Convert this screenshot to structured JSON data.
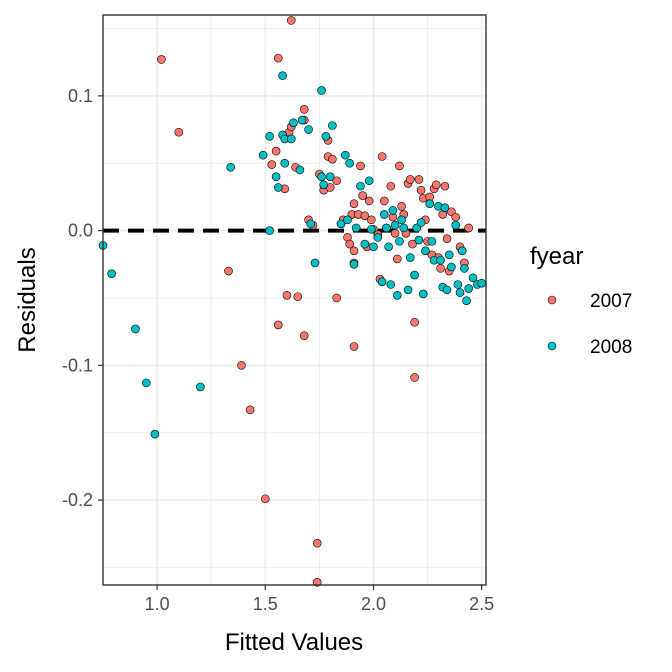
{
  "chart_data": {
    "type": "scatter",
    "xlabel": "Fitted Values",
    "ylabel": "Residuals",
    "xlim": [
      0.75,
      2.52
    ],
    "ylim": [
      -0.263,
      0.16
    ],
    "xticks": [
      1.0,
      1.5,
      2.0,
      2.5
    ],
    "xtick_labels": [
      "1.0",
      "1.5",
      "2.0",
      "2.5"
    ],
    "yticks": [
      0.1,
      0.0,
      -0.1,
      -0.2
    ],
    "ytick_labels": [
      "0.1",
      "0.0",
      "-0.1",
      "-0.2"
    ],
    "grid": true,
    "reference_line": {
      "y": 0.0,
      "style": "dashed",
      "color": "#000000"
    },
    "legend": {
      "title": "fyear",
      "placement": "right"
    },
    "series": [
      {
        "name": "2007",
        "color": "#F8766D",
        "points": [
          [
            1.02,
            0.127
          ],
          [
            1.1,
            0.073
          ],
          [
            1.33,
            -0.03
          ],
          [
            1.39,
            -0.1
          ],
          [
            1.43,
            -0.133
          ],
          [
            1.5,
            -0.199
          ],
          [
            1.56,
            0.128
          ],
          [
            1.53,
            0.049
          ],
          [
            1.55,
            0.059
          ],
          [
            1.59,
            0.031
          ],
          [
            1.6,
            -0.048
          ],
          [
            1.56,
            -0.07
          ],
          [
            1.62,
            0.156
          ],
          [
            1.61,
            0.073
          ],
          [
            1.62,
            0.077
          ],
          [
            1.64,
            0.047
          ],
          [
            1.65,
            -0.049
          ],
          [
            1.68,
            0.09
          ],
          [
            1.68,
            0.082
          ],
          [
            1.68,
            -0.078
          ],
          [
            1.7,
            0.008
          ],
          [
            1.72,
            0.004
          ],
          [
            1.74,
            -0.232
          ],
          [
            1.74,
            -0.261
          ],
          [
            1.75,
            0.042
          ],
          [
            1.77,
            0.03
          ],
          [
            1.79,
            0.067
          ],
          [
            1.79,
            0.055
          ],
          [
            1.8,
            0.032
          ],
          [
            1.81,
            0.053
          ],
          [
            1.83,
            0.037
          ],
          [
            1.83,
            -0.05
          ],
          [
            1.85,
            0.005
          ],
          [
            1.86,
            0.008
          ],
          [
            1.88,
            -0.005
          ],
          [
            1.89,
            -0.01
          ],
          [
            1.9,
            0.012
          ],
          [
            1.91,
            0.02
          ],
          [
            1.91,
            -0.015
          ],
          [
            1.91,
            -0.024
          ],
          [
            1.91,
            -0.086
          ],
          [
            1.93,
            0.012
          ],
          [
            1.94,
            0.048
          ],
          [
            1.95,
            0.026
          ],
          [
            1.96,
            0.011
          ],
          [
            1.97,
            -0.012
          ],
          [
            1.98,
            0.022
          ],
          [
            1.99,
            0.008
          ],
          [
            2.0,
            0.001
          ],
          [
            2.02,
            -0.003
          ],
          [
            2.03,
            -0.036
          ],
          [
            2.04,
            0.055
          ],
          [
            2.05,
            0.022
          ],
          [
            2.06,
            0.002
          ],
          [
            2.08,
            0.033
          ],
          [
            2.09,
            0.01
          ],
          [
            2.1,
            -0.002
          ],
          [
            2.11,
            -0.021
          ],
          [
            2.12,
            0.048
          ],
          [
            2.13,
            0.018
          ],
          [
            2.14,
            0.012
          ],
          [
            2.15,
            -0.002
          ],
          [
            2.16,
            0.035
          ],
          [
            2.17,
            0.038
          ],
          [
            2.18,
            -0.01
          ],
          [
            2.19,
            -0.068
          ],
          [
            2.19,
            -0.109
          ],
          [
            2.21,
            0.038
          ],
          [
            2.22,
            0.03
          ],
          [
            2.23,
            0.024
          ],
          [
            2.24,
            0.008
          ],
          [
            2.25,
            -0.008
          ],
          [
            2.26,
            0.025
          ],
          [
            2.27,
            -0.018
          ],
          [
            2.28,
            0.031
          ],
          [
            2.29,
            0.034
          ],
          [
            2.3,
            -0.02
          ],
          [
            2.31,
            -0.028
          ],
          [
            2.32,
            0.012
          ],
          [
            2.33,
            0.033
          ],
          [
            2.34,
            -0.006
          ],
          [
            2.35,
            -0.03
          ],
          [
            2.36,
            0.014
          ],
          [
            2.38,
            0.01
          ],
          [
            2.4,
            -0.012
          ],
          [
            2.42,
            -0.024
          ],
          [
            2.44,
            0.002
          ]
        ]
      },
      {
        "name": "2008",
        "color": "#00BFC4",
        "points": [
          [
            0.75,
            -0.011
          ],
          [
            0.79,
            -0.032
          ],
          [
            0.9,
            -0.073
          ],
          [
            0.95,
            -0.113
          ],
          [
            0.99,
            -0.151
          ],
          [
            1.2,
            -0.116
          ],
          [
            1.34,
            0.047
          ],
          [
            1.49,
            0.056
          ],
          [
            1.52,
            0.07
          ],
          [
            1.52,
            0.0
          ],
          [
            1.55,
            0.04
          ],
          [
            1.56,
            0.032
          ],
          [
            1.58,
            0.115
          ],
          [
            1.58,
            0.071
          ],
          [
            1.59,
            0.068
          ],
          [
            1.59,
            0.05
          ],
          [
            1.62,
            0.068
          ],
          [
            1.63,
            0.08
          ],
          [
            1.66,
            0.045
          ],
          [
            1.67,
            0.082
          ],
          [
            1.7,
            0.075
          ],
          [
            1.71,
            0.005
          ],
          [
            1.73,
            -0.024
          ],
          [
            1.76,
            0.104
          ],
          [
            1.76,
            0.04
          ],
          [
            1.77,
            0.034
          ],
          [
            1.78,
            0.07
          ],
          [
            1.8,
            0.04
          ],
          [
            1.81,
            0.078
          ],
          [
            1.85,
            0.005
          ],
          [
            1.87,
            0.056
          ],
          [
            1.88,
            0.008
          ],
          [
            1.89,
            0.05
          ],
          [
            1.91,
            -0.025
          ],
          [
            1.92,
            0.002
          ],
          [
            1.94,
            0.033
          ],
          [
            1.96,
            -0.01
          ],
          [
            1.98,
            0.037
          ],
          [
            1.99,
            0.001
          ],
          [
            2.0,
            -0.012
          ],
          [
            2.02,
            -0.005
          ],
          [
            2.04,
            -0.038
          ],
          [
            2.05,
            0.012
          ],
          [
            2.06,
            0.002
          ],
          [
            2.07,
            -0.012
          ],
          [
            2.08,
            -0.04
          ],
          [
            2.09,
            0.015
          ],
          [
            2.1,
            0.004
          ],
          [
            2.11,
            -0.048
          ],
          [
            2.12,
            -0.008
          ],
          [
            2.13,
            0.008
          ],
          [
            2.14,
            0.002
          ],
          [
            2.16,
            -0.044
          ],
          [
            2.17,
            -0.02
          ],
          [
            2.19,
            -0.033
          ],
          [
            2.2,
            0.002
          ],
          [
            2.21,
            -0.007
          ],
          [
            2.22,
            0.006
          ],
          [
            2.23,
            -0.047
          ],
          [
            2.24,
            -0.015
          ],
          [
            2.26,
            0.02
          ],
          [
            2.27,
            -0.008
          ],
          [
            2.28,
            -0.022
          ],
          [
            2.3,
            0.018
          ],
          [
            2.31,
            -0.022
          ],
          [
            2.32,
            -0.042
          ],
          [
            2.33,
            0.017
          ],
          [
            2.34,
            -0.044
          ],
          [
            2.35,
            -0.018
          ],
          [
            2.36,
            -0.027
          ],
          [
            2.38,
            0.004
          ],
          [
            2.39,
            -0.04
          ],
          [
            2.4,
            -0.046
          ],
          [
            2.41,
            -0.015
          ],
          [
            2.42,
            -0.028
          ],
          [
            2.43,
            -0.052
          ],
          [
            2.44,
            -0.043
          ],
          [
            2.46,
            -0.035
          ],
          [
            2.48,
            -0.04
          ],
          [
            2.5,
            -0.039
          ]
        ]
      }
    ]
  }
}
